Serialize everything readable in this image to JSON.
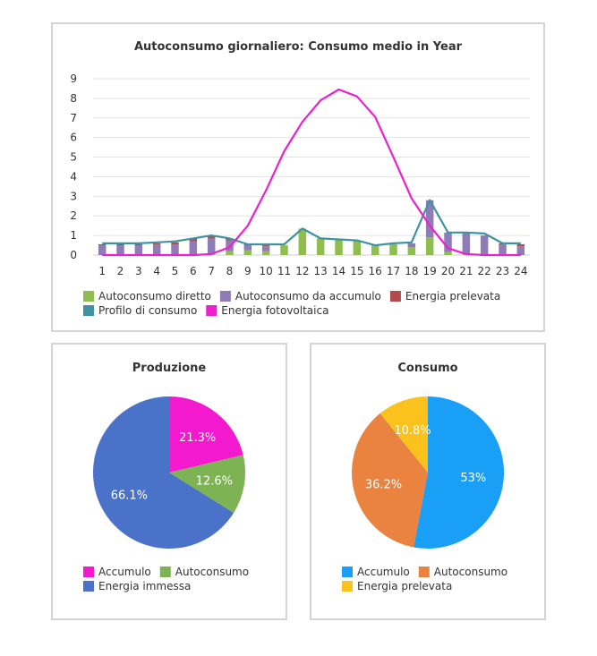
{
  "chart_data": [
    {
      "type": "bar",
      "title": "Autoconsumo giornaliero: Consumo medio in Year",
      "categories": [
        "1",
        "2",
        "3",
        "4",
        "5",
        "6",
        "7",
        "8",
        "9",
        "10",
        "11",
        "12",
        "13",
        "14",
        "15",
        "16",
        "17",
        "18",
        "19",
        "20",
        "21",
        "22",
        "23",
        "24"
      ],
      "ylim": [
        0,
        9
      ],
      "yticks": [
        "0",
        "1",
        "2",
        "3",
        "4",
        "5",
        "6",
        "7",
        "8",
        "9"
      ],
      "grid": true,
      "legend_position": "bottom-left",
      "series": [
        {
          "name": "Autoconsumo diretto",
          "kind": "bar",
          "color": "#8fbe4f",
          "values": [
            0,
            0,
            0,
            0,
            0,
            0,
            0.05,
            0.2,
            0.25,
            0.2,
            0.5,
            1.35,
            0.85,
            0.8,
            0.75,
            0.5,
            0.55,
            0.4,
            0.9,
            0.15,
            0.05,
            0,
            0,
            0
          ]
        },
        {
          "name": "Autoconsumo da accumulo",
          "kind": "bar",
          "color": "#8f7bb6",
          "values": [
            0.5,
            0.5,
            0.5,
            0.55,
            0.55,
            0.7,
            0.8,
            0.55,
            0.25,
            0.25,
            0,
            0,
            0,
            0,
            0,
            0,
            0,
            0.2,
            1.9,
            1.0,
            1.1,
            1.0,
            0.55,
            0.45
          ]
        },
        {
          "name": "Energia prelevata",
          "kind": "bar",
          "color": "#b14b4b",
          "values": [
            0.05,
            0.05,
            0.05,
            0.05,
            0.1,
            0.15,
            0.15,
            0.1,
            0.05,
            0.05,
            0,
            0,
            0,
            0,
            0,
            0,
            0,
            0,
            0,
            0,
            0,
            0,
            0.05,
            0.1
          ]
        },
        {
          "name": "Profilo di consumo",
          "kind": "line",
          "color": "#3e93a3",
          "values": [
            0.6,
            0.6,
            0.6,
            0.65,
            0.7,
            0.85,
            1.0,
            0.85,
            0.55,
            0.55,
            0.55,
            1.35,
            0.85,
            0.8,
            0.75,
            0.5,
            0.6,
            0.65,
            2.8,
            1.15,
            1.15,
            1.1,
            0.6,
            0.6
          ]
        },
        {
          "name": "Energia fotovoltaica",
          "kind": "line",
          "color": "#ee1fce",
          "values": [
            0,
            0,
            0,
            0,
            0,
            0,
            0.05,
            0.4,
            1.5,
            3.3,
            5.3,
            6.8,
            7.9,
            8.45,
            8.1,
            7.05,
            5.0,
            2.9,
            1.5,
            0.35,
            0.05,
            0,
            0,
            0
          ]
        }
      ]
    },
    {
      "type": "pie",
      "title": "Produzione",
      "slices": [
        {
          "name": "Accumulo",
          "value": 21.3,
          "label": "21.3%",
          "color": "#f219cf"
        },
        {
          "name": "Autoconsumo",
          "value": 12.6,
          "label": "12.6%",
          "color": "#7db352"
        },
        {
          "name": "Energia immessa",
          "value": 66.1,
          "label": "66.1%",
          "color": "#4a72c9"
        }
      ]
    },
    {
      "type": "pie",
      "title": "Consumo",
      "slices": [
        {
          "name": "Accumulo",
          "value": 53,
          "label": "53%",
          "color": "#199ff5"
        },
        {
          "name": "Autoconsumo",
          "value": 36.2,
          "label": "36.2%",
          "color": "#e9833f"
        },
        {
          "name": "Energia prelevata",
          "value": 10.8,
          "label": "10.8%",
          "color": "#fbc21e"
        }
      ]
    }
  ]
}
